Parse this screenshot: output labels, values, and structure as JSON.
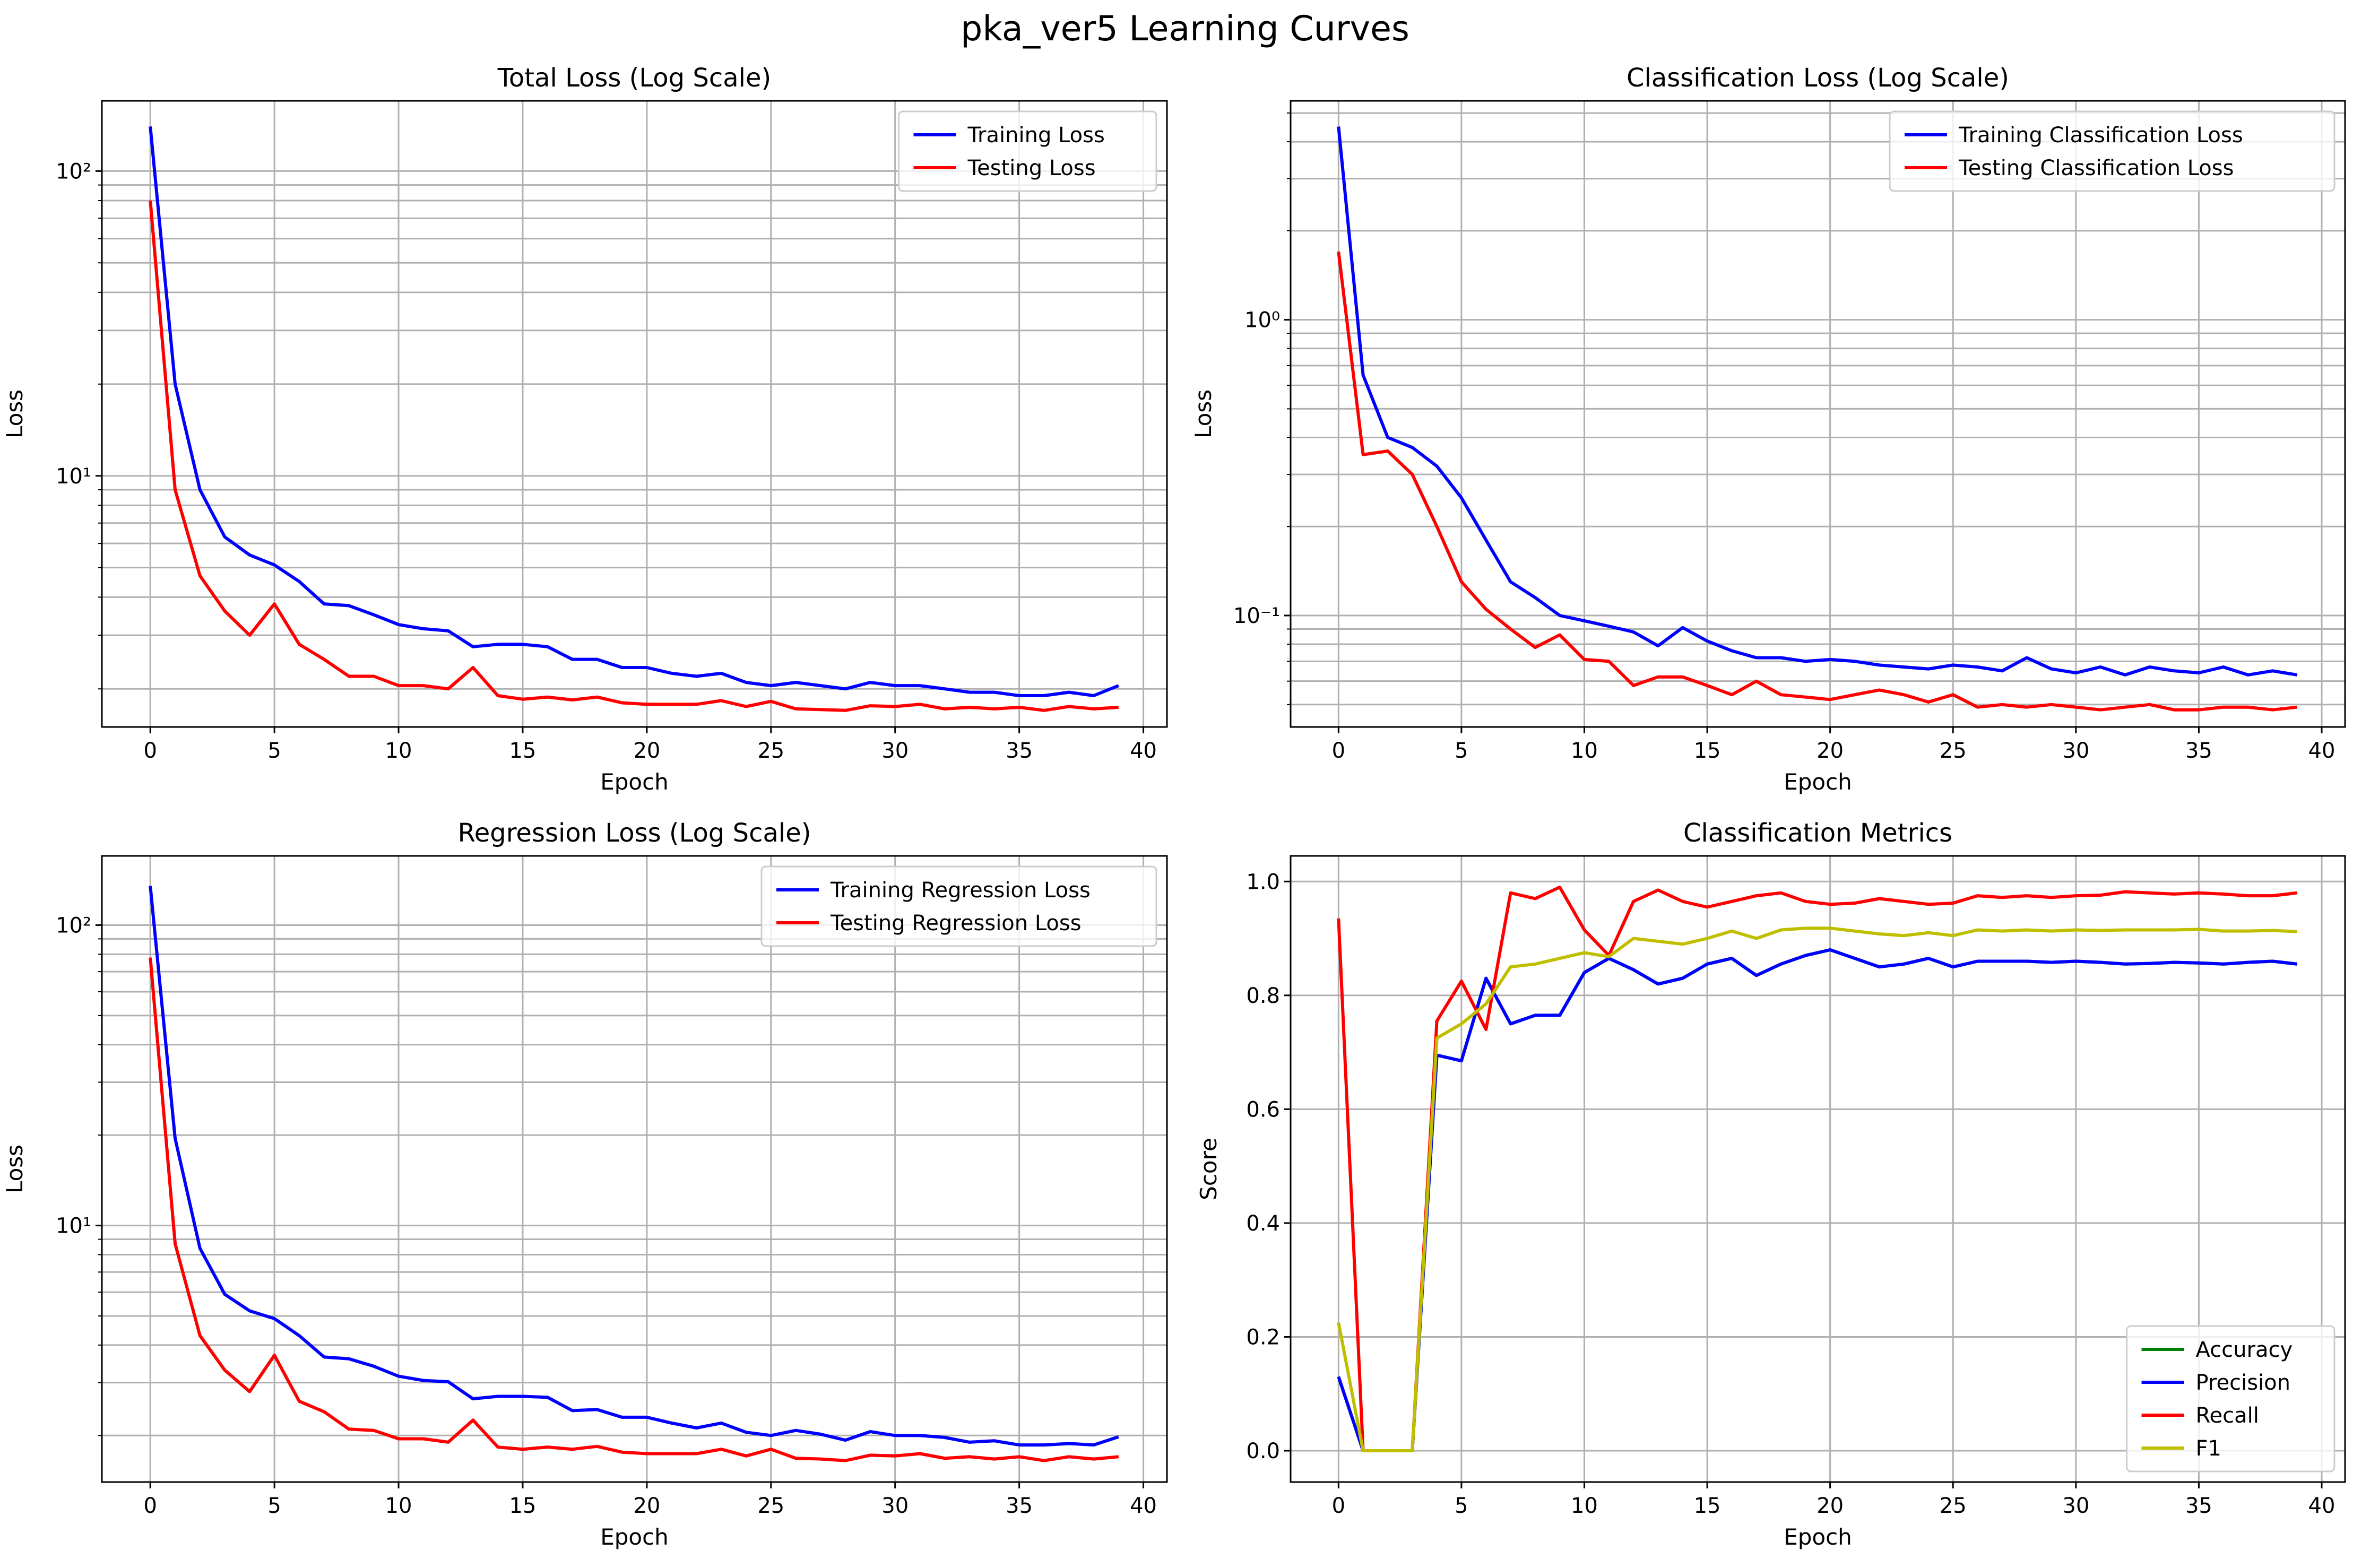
{
  "figure": {
    "title": "pka_ver5 Learning Curves"
  },
  "chart_data": [
    {
      "type": "line",
      "title": "Total Loss (Log Scale)",
      "xlabel": "Epoch",
      "ylabel": "Loss",
      "yscale": "log",
      "xlim": [
        -1.95,
        40.95
      ],
      "ylim": [
        1.5,
        170
      ],
      "xticks": [
        0,
        5,
        10,
        15,
        20,
        25,
        30,
        35,
        40
      ],
      "yticks": [
        10,
        100
      ],
      "ytick_labels": [
        "10¹",
        "10²"
      ],
      "grid": true,
      "legend_position": "upper right",
      "series": [
        {
          "name": "Training Loss",
          "color": "#0000ff",
          "x": [
            0,
            1,
            2,
            3,
            4,
            5,
            6,
            7,
            8,
            9,
            10,
            11,
            12,
            13,
            14,
            15,
            16,
            17,
            18,
            19,
            20,
            21,
            22,
            23,
            24,
            25,
            26,
            27,
            28,
            29,
            30,
            31,
            32,
            33,
            34,
            35,
            36,
            37,
            38,
            39
          ],
          "values": [
            140,
            20,
            9,
            6.3,
            5.5,
            5.1,
            4.5,
            3.8,
            3.75,
            3.5,
            3.25,
            3.15,
            3.1,
            2.75,
            2.8,
            2.8,
            2.75,
            2.5,
            2.5,
            2.35,
            2.35,
            2.25,
            2.2,
            2.25,
            2.1,
            2.05,
            2.1,
            2.05,
            2.0,
            2.1,
            2.05,
            2.05,
            2.0,
            1.95,
            1.95,
            1.9,
            1.9,
            1.95,
            1.9,
            2.05
          ]
        },
        {
          "name": "Testing Loss",
          "color": "#ff0000",
          "x": [
            0,
            1,
            2,
            3,
            4,
            5,
            6,
            7,
            8,
            9,
            10,
            11,
            12,
            13,
            14,
            15,
            16,
            17,
            18,
            19,
            20,
            21,
            22,
            23,
            24,
            25,
            26,
            27,
            28,
            29,
            30,
            31,
            32,
            33,
            34,
            35,
            36,
            37,
            38,
            39
          ],
          "values": [
            80,
            9,
            4.7,
            3.6,
            3.0,
            3.8,
            2.8,
            2.5,
            2.2,
            2.2,
            2.05,
            2.05,
            2.0,
            2.35,
            1.9,
            1.85,
            1.88,
            1.84,
            1.88,
            1.8,
            1.78,
            1.78,
            1.78,
            1.83,
            1.75,
            1.82,
            1.72,
            1.71,
            1.7,
            1.76,
            1.75,
            1.78,
            1.72,
            1.74,
            1.72,
            1.74,
            1.7,
            1.75,
            1.72,
            1.74
          ]
        }
      ]
    },
    {
      "type": "line",
      "title": "Classification Loss (Log Scale)",
      "xlabel": "Epoch",
      "ylabel": "Loss",
      "yscale": "log",
      "xlim": [
        -1.95,
        40.95
      ],
      "ylim": [
        0.042,
        5.5
      ],
      "xticks": [
        0,
        5,
        10,
        15,
        20,
        25,
        30,
        35,
        40
      ],
      "yticks": [
        0.1,
        1
      ],
      "ytick_labels": [
        "10⁻¹",
        "10⁰"
      ],
      "grid": true,
      "legend_position": "upper right",
      "series": [
        {
          "name": "Training Classification Loss",
          "color": "#0000ff",
          "x": [
            0,
            1,
            2,
            3,
            4,
            5,
            6,
            7,
            8,
            9,
            10,
            11,
            12,
            13,
            14,
            15,
            16,
            17,
            18,
            19,
            20,
            21,
            22,
            23,
            24,
            25,
            26,
            27,
            28,
            29,
            30,
            31,
            32,
            33,
            34,
            35,
            36,
            37,
            38,
            39
          ],
          "values": [
            4.5,
            0.65,
            0.4,
            0.37,
            0.32,
            0.25,
            0.18,
            0.13,
            0.115,
            0.1,
            0.096,
            0.092,
            0.088,
            0.079,
            0.091,
            0.082,
            0.076,
            0.072,
            0.072,
            0.07,
            0.071,
            0.07,
            0.068,
            0.067,
            0.066,
            0.068,
            0.067,
            0.065,
            0.072,
            0.066,
            0.064,
            0.067,
            0.063,
            0.067,
            0.065,
            0.064,
            0.067,
            0.063,
            0.065,
            0.063
          ]
        },
        {
          "name": "Testing Classification Loss",
          "color": "#ff0000",
          "x": [
            0,
            1,
            2,
            3,
            4,
            5,
            6,
            7,
            8,
            9,
            10,
            11,
            12,
            13,
            14,
            15,
            16,
            17,
            18,
            19,
            20,
            21,
            22,
            23,
            24,
            25,
            26,
            27,
            28,
            29,
            30,
            31,
            32,
            33,
            34,
            35,
            36,
            37,
            38,
            39
          ],
          "values": [
            1.7,
            0.35,
            0.36,
            0.3,
            0.2,
            0.13,
            0.105,
            0.09,
            0.078,
            0.086,
            0.071,
            0.07,
            0.058,
            0.062,
            0.062,
            0.058,
            0.054,
            0.06,
            0.054,
            0.053,
            0.052,
            0.054,
            0.056,
            0.054,
            0.051,
            0.054,
            0.049,
            0.05,
            0.049,
            0.05,
            0.049,
            0.048,
            0.049,
            0.05,
            0.048,
            0.048,
            0.049,
            0.049,
            0.048,
            0.049
          ]
        }
      ]
    },
    {
      "type": "line",
      "title": "Regression Loss (Log Scale)",
      "xlabel": "Epoch",
      "ylabel": "Loss",
      "yscale": "log",
      "xlim": [
        -1.95,
        40.95
      ],
      "ylim": [
        1.4,
        170
      ],
      "xticks": [
        0,
        5,
        10,
        15,
        20,
        25,
        30,
        35,
        40
      ],
      "yticks": [
        10,
        100
      ],
      "ytick_labels": [
        "10¹",
        "10²"
      ],
      "grid": true,
      "legend_position": "upper right",
      "series": [
        {
          "name": "Training Regression Loss",
          "color": "#0000ff",
          "x": [
            0,
            1,
            2,
            3,
            4,
            5,
            6,
            7,
            8,
            9,
            10,
            11,
            12,
            13,
            14,
            15,
            16,
            17,
            18,
            19,
            20,
            21,
            22,
            23,
            24,
            25,
            26,
            27,
            28,
            29,
            30,
            31,
            32,
            33,
            34,
            35,
            36,
            37,
            38,
            39
          ],
          "values": [
            135,
            19.5,
            8.4,
            5.9,
            5.2,
            4.9,
            4.3,
            3.65,
            3.6,
            3.4,
            3.15,
            3.05,
            3.02,
            2.65,
            2.7,
            2.7,
            2.68,
            2.42,
            2.44,
            2.3,
            2.3,
            2.2,
            2.12,
            2.2,
            2.05,
            2.0,
            2.08,
            2.02,
            1.93,
            2.06,
            2.0,
            2.0,
            1.97,
            1.9,
            1.92,
            1.86,
            1.86,
            1.88,
            1.86,
            1.98
          ]
        },
        {
          "name": "Testing Regression Loss",
          "color": "#ff0000",
          "x": [
            0,
            1,
            2,
            3,
            4,
            5,
            6,
            7,
            8,
            9,
            10,
            11,
            12,
            13,
            14,
            15,
            16,
            17,
            18,
            19,
            20,
            21,
            22,
            23,
            24,
            25,
            26,
            27,
            28,
            29,
            30,
            31,
            32,
            33,
            34,
            35,
            36,
            37,
            38,
            39
          ],
          "values": [
            78,
            8.7,
            4.3,
            3.3,
            2.8,
            3.7,
            2.6,
            2.4,
            2.1,
            2.08,
            1.95,
            1.95,
            1.9,
            2.25,
            1.83,
            1.8,
            1.83,
            1.8,
            1.84,
            1.76,
            1.74,
            1.74,
            1.74,
            1.8,
            1.71,
            1.8,
            1.68,
            1.67,
            1.65,
            1.72,
            1.71,
            1.74,
            1.68,
            1.7,
            1.67,
            1.7,
            1.65,
            1.7,
            1.67,
            1.7
          ]
        }
      ]
    },
    {
      "type": "line",
      "title": "Classification Metrics",
      "xlabel": "Epoch",
      "ylabel": "Score",
      "yscale": "linear",
      "xlim": [
        -1.95,
        40.95
      ],
      "ylim": [
        -0.055,
        1.045
      ],
      "xticks": [
        0,
        5,
        10,
        15,
        20,
        25,
        30,
        35,
        40
      ],
      "yticks": [
        0.0,
        0.2,
        0.4,
        0.6,
        0.8,
        1.0
      ],
      "ytick_labels": [
        "0.0",
        "0.2",
        "0.4",
        "0.6",
        "0.8",
        "1.0"
      ],
      "grid": true,
      "legend_position": "lower right",
      "series": [
        {
          "name": "Accuracy",
          "color": "#008000",
          "x": [
            0,
            1,
            2,
            3,
            4,
            5,
            6,
            7,
            8,
            9,
            10,
            11,
            12,
            13,
            14,
            15,
            16,
            17,
            18,
            19,
            20,
            21,
            22,
            23,
            24,
            25,
            26,
            27,
            28,
            29,
            30,
            31,
            32,
            33,
            34,
            35,
            36,
            37,
            38,
            39
          ],
          "values": [
            0.13,
            0.0,
            0.0,
            0.0,
            0.695,
            0.685,
            0.83,
            0.75,
            0.765,
            0.765,
            0.84,
            0.865,
            0.845,
            0.82,
            0.83,
            0.855,
            0.865,
            0.835,
            0.855,
            0.87,
            0.88,
            0.865,
            0.85,
            0.855,
            0.865,
            0.85,
            0.86,
            0.86,
            0.86,
            0.858,
            0.86,
            0.858,
            0.855,
            0.856,
            0.858,
            0.857,
            0.855,
            0.858,
            0.86,
            0.855
          ]
        },
        {
          "name": "Precision",
          "color": "#0000ff",
          "x": [
            0,
            1,
            2,
            3,
            4,
            5,
            6,
            7,
            8,
            9,
            10,
            11,
            12,
            13,
            14,
            15,
            16,
            17,
            18,
            19,
            20,
            21,
            22,
            23,
            24,
            25,
            26,
            27,
            28,
            29,
            30,
            31,
            32,
            33,
            34,
            35,
            36,
            37,
            38,
            39
          ],
          "values": [
            0.13,
            0.0,
            0.0,
            0.0,
            0.695,
            0.685,
            0.83,
            0.75,
            0.765,
            0.765,
            0.84,
            0.865,
            0.845,
            0.82,
            0.83,
            0.855,
            0.865,
            0.835,
            0.855,
            0.87,
            0.88,
            0.865,
            0.85,
            0.855,
            0.865,
            0.85,
            0.86,
            0.86,
            0.86,
            0.858,
            0.86,
            0.858,
            0.855,
            0.856,
            0.858,
            0.857,
            0.855,
            0.858,
            0.86,
            0.855
          ]
        },
        {
          "name": "Recall",
          "color": "#ff0000",
          "x": [
            0,
            1,
            2,
            3,
            4,
            5,
            6,
            7,
            8,
            9,
            10,
            11,
            12,
            13,
            14,
            15,
            16,
            17,
            18,
            19,
            20,
            21,
            22,
            23,
            24,
            25,
            26,
            27,
            28,
            29,
            30,
            31,
            32,
            33,
            34,
            35,
            36,
            37,
            38,
            39
          ],
          "values": [
            0.935,
            0.0,
            0.0,
            0.0,
            0.755,
            0.825,
            0.74,
            0.98,
            0.97,
            0.99,
            0.915,
            0.87,
            0.965,
            0.985,
            0.965,
            0.955,
            0.965,
            0.975,
            0.98,
            0.965,
            0.96,
            0.962,
            0.97,
            0.965,
            0.96,
            0.962,
            0.975,
            0.972,
            0.975,
            0.972,
            0.975,
            0.976,
            0.982,
            0.98,
            0.978,
            0.98,
            0.978,
            0.975,
            0.975,
            0.98
          ]
        },
        {
          "name": "F1",
          "color": "#bfbf00",
          "x": [
            0,
            1,
            2,
            3,
            4,
            5,
            6,
            7,
            8,
            9,
            10,
            11,
            12,
            13,
            14,
            15,
            16,
            17,
            18,
            19,
            20,
            21,
            22,
            23,
            24,
            25,
            26,
            27,
            28,
            29,
            30,
            31,
            32,
            33,
            34,
            35,
            36,
            37,
            38,
            39
          ],
          "values": [
            0.225,
            0.0,
            0.0,
            0.0,
            0.725,
            0.75,
            0.785,
            0.85,
            0.855,
            0.865,
            0.875,
            0.868,
            0.9,
            0.895,
            0.89,
            0.9,
            0.913,
            0.9,
            0.915,
            0.918,
            0.918,
            0.913,
            0.908,
            0.905,
            0.91,
            0.905,
            0.915,
            0.913,
            0.915,
            0.913,
            0.915,
            0.914,
            0.915,
            0.915,
            0.915,
            0.916,
            0.913,
            0.913,
            0.914,
            0.912
          ]
        }
      ]
    }
  ]
}
